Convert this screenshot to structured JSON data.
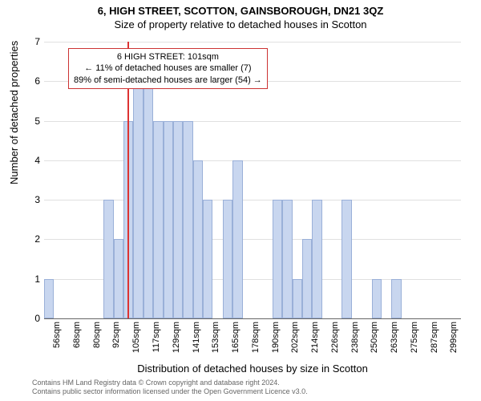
{
  "title": "6, HIGH STREET, SCOTTON, GAINSBOROUGH, DN21 3QZ",
  "subtitle": "Size of property relative to detached houses in Scotton",
  "ylabel": "Number of detached properties",
  "xlabel": "Distribution of detached houses by size in Scotton",
  "chart": {
    "type": "bar",
    "ylim": [
      0,
      7
    ],
    "ytick_step": 1,
    "background_color": "#ffffff",
    "grid_color": "#e0e0e0",
    "bar_fill": "#c8d6ef",
    "bar_stroke": "#9ab0d8",
    "marker_color": "#dd3333",
    "marker_value": 101,
    "x_start": 50,
    "x_step": 6,
    "categories": [
      "56sqm",
      "68sqm",
      "80sqm",
      "92sqm",
      "105sqm",
      "117sqm",
      "129sqm",
      "141sqm",
      "153sqm",
      "165sqm",
      "178sqm",
      "190sqm",
      "202sqm",
      "214sqm",
      "226sqm",
      "238sqm",
      "250sqm",
      "263sqm",
      "275sqm",
      "287sqm",
      "299sqm"
    ],
    "values": [
      1,
      0,
      0,
      0,
      0,
      0,
      3,
      2,
      5,
      6,
      6,
      5,
      5,
      5,
      5,
      4,
      3,
      0,
      3,
      4,
      0,
      0,
      0,
      3,
      3,
      1,
      2,
      3,
      0,
      0,
      3,
      0,
      0,
      1,
      0,
      1,
      0,
      0,
      0,
      0,
      0,
      0
    ],
    "label_every": 2
  },
  "annotation": {
    "line1": "6 HIGH STREET: 101sqm",
    "line2": "← 11% of detached houses are smaller (7)",
    "line3": "89% of semi-detached houses are larger (54) →",
    "border_color": "#cc3333",
    "fontsize": 11
  },
  "footer": {
    "line1": "Contains HM Land Registry data © Crown copyright and database right 2024.",
    "line2": "Contains public sector information licensed under the Open Government Licence v3.0."
  }
}
